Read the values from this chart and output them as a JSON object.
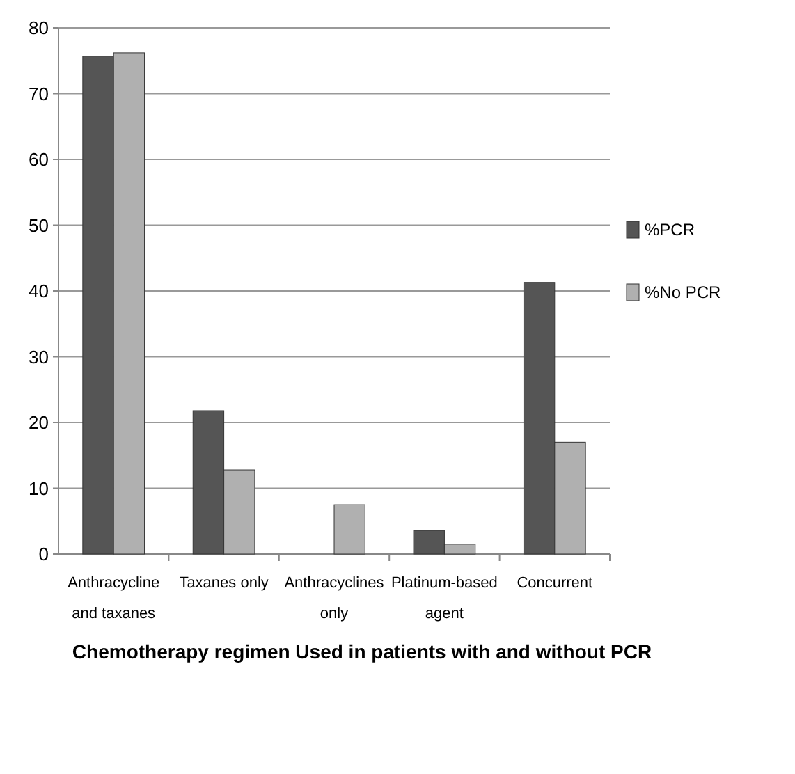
{
  "chart_data": {
    "type": "bar",
    "xlabel": "Chemotherapy regimen Used in patients with  and without PCR",
    "categories": [
      "Anthracycline and taxanes",
      "Taxanes only",
      "Anthracyclines only",
      "Platinum-based agent",
      "Concurrent"
    ],
    "series": [
      {
        "name": "%PCR",
        "color": "#555555",
        "values": [
          75.7,
          21.8,
          0,
          3.6,
          41.3
        ]
      },
      {
        "name": "%No PCR",
        "color": "#b0b0b0",
        "values": [
          76.2,
          12.8,
          7.5,
          1.5,
          17
        ]
      }
    ],
    "ylim": [
      0,
      80
    ],
    "yticks": [
      0,
      10,
      20,
      30,
      40,
      50,
      60,
      70,
      80
    ],
    "grid": "y",
    "legend": "right"
  }
}
